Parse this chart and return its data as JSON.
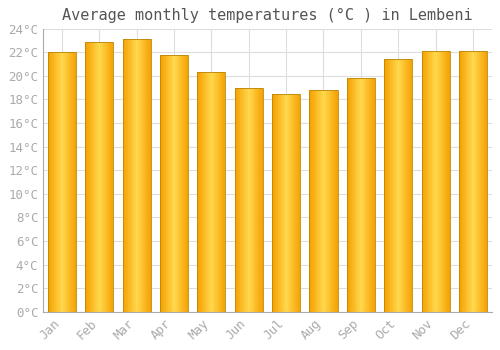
{
  "title": "Average monthly temperatures (°C ) in Lembeni",
  "months": [
    "Jan",
    "Feb",
    "Mar",
    "Apr",
    "May",
    "Jun",
    "Jul",
    "Aug",
    "Sep",
    "Oct",
    "Nov",
    "Dec"
  ],
  "values": [
    22.0,
    22.9,
    23.1,
    21.8,
    20.3,
    19.0,
    18.5,
    18.8,
    19.8,
    21.4,
    22.1,
    22.1
  ],
  "bar_color_center": "#FFD84D",
  "bar_color_edge": "#F5A000",
  "bar_edge_color": "#B8860B",
  "ylim": [
    0,
    24
  ],
  "ytick_step": 2,
  "background_color": "#ffffff",
  "grid_color": "#dddddd",
  "title_fontsize": 11,
  "tick_fontsize": 9,
  "tick_color": "#aaaaaa",
  "font_family": "monospace",
  "bar_width": 0.75
}
